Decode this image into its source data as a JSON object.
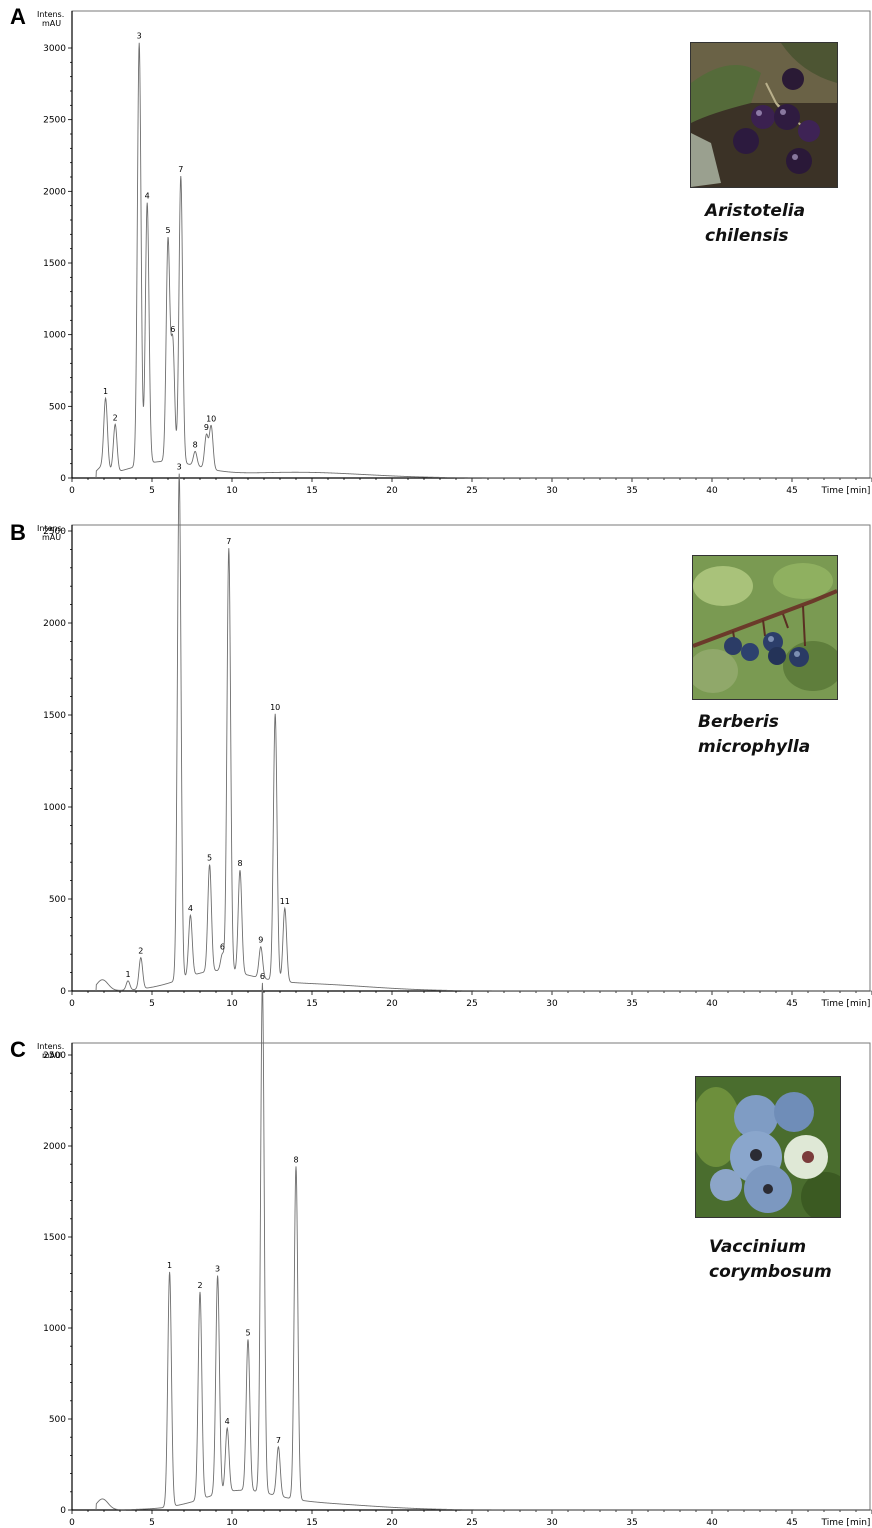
{
  "chart_data": [
    {
      "type": "line",
      "panel": "A",
      "ylabel": "Intens.\nmAU",
      "xlabel": "Time [min]",
      "xlim": [
        0,
        50
      ],
      "ylim": [
        0,
        3150
      ],
      "xticks": [
        0,
        5,
        10,
        15,
        20,
        25,
        30,
        35,
        40,
        45
      ],
      "yticks": [
        0,
        500,
        1000,
        1500,
        2000,
        2500,
        3000
      ],
      "species": [
        "Aristotelia",
        "chilensis"
      ],
      "peaks": [
        {
          "label": "1",
          "t": 2.1,
          "y": 480
        },
        {
          "label": "2",
          "t": 2.7,
          "y": 330
        },
        {
          "label": "3",
          "t": 4.2,
          "y": 2950
        },
        {
          "label": "4",
          "t": 4.7,
          "y": 1820
        },
        {
          "label": "5",
          "t": 6.0,
          "y": 1540
        },
        {
          "label": "6",
          "t": 6.3,
          "y": 830
        },
        {
          "label": "7",
          "t": 6.8,
          "y": 2000
        },
        {
          "label": "8",
          "t": 7.7,
          "y": 100
        },
        {
          "label": "9",
          "t": 8.4,
          "y": 230
        },
        {
          "label": "10",
          "t": 8.7,
          "y": 300
        }
      ]
    },
    {
      "type": "line",
      "panel": "B",
      "ylabel": "Intens.\nmAU",
      "xlabel": "Time [min]",
      "xlim": [
        0,
        50
      ],
      "ylim": [
        0,
        2950
      ],
      "xticks": [
        0,
        5,
        10,
        15,
        20,
        25,
        30,
        35,
        40,
        45
      ],
      "yticks": [
        0,
        500,
        1000,
        1500,
        2000,
        2500
      ],
      "species": [
        "Berberis",
        "microphylla"
      ],
      "peaks": [
        {
          "label": "1",
          "t": 3.5,
          "y": 50
        },
        {
          "label": "2",
          "t": 4.3,
          "y": 170
        },
        {
          "label": "3",
          "t": 6.7,
          "y": 2750
        },
        {
          "label": "4",
          "t": 7.4,
          "y": 330
        },
        {
          "label": "5",
          "t": 8.6,
          "y": 580
        },
        {
          "label": "6",
          "t": 9.4,
          "y": 90
        },
        {
          "label": "7",
          "t": 9.8,
          "y": 2300
        },
        {
          "label": "8",
          "t": 10.5,
          "y": 560
        },
        {
          "label": "9",
          "t": 11.8,
          "y": 170
        },
        {
          "label": "10",
          "t": 12.7,
          "y": 1450
        },
        {
          "label": "11",
          "t": 13.3,
          "y": 400
        }
      ]
    },
    {
      "type": "line",
      "panel": "C",
      "ylabel": "Intens.\nmAU",
      "xlabel": "Time [min]",
      "xlim": [
        0,
        50
      ],
      "ylim": [
        0,
        2950
      ],
      "xticks": [
        0,
        5,
        10,
        15,
        20,
        25,
        30,
        35,
        40,
        45
      ],
      "yticks": [
        0,
        500,
        1000,
        1500,
        2000,
        2500
      ],
      "species": [
        "Vaccinium",
        "corymbosum"
      ],
      "peaks": [
        {
          "label": "1",
          "t": 6.1,
          "y": 1290
        },
        {
          "label": "2",
          "t": 8.0,
          "y": 1140
        },
        {
          "label": "3",
          "t": 9.1,
          "y": 1200
        },
        {
          "label": "4",
          "t": 9.7,
          "y": 350
        },
        {
          "label": "5",
          "t": 11.0,
          "y": 830
        },
        {
          "label": "6",
          "t": 11.9,
          "y": 2800
        },
        {
          "label": "7",
          "t": 12.9,
          "y": 270
        },
        {
          "label": "8",
          "t": 14.0,
          "y": 1830
        }
      ]
    }
  ],
  "colors": {
    "trace": "#6e6e6e",
    "axis": "#000000",
    "frame": "#7a7a7a"
  },
  "photos": [
    "maqui-berries-photo",
    "calafate-berries-photo",
    "blueberries-photo"
  ]
}
